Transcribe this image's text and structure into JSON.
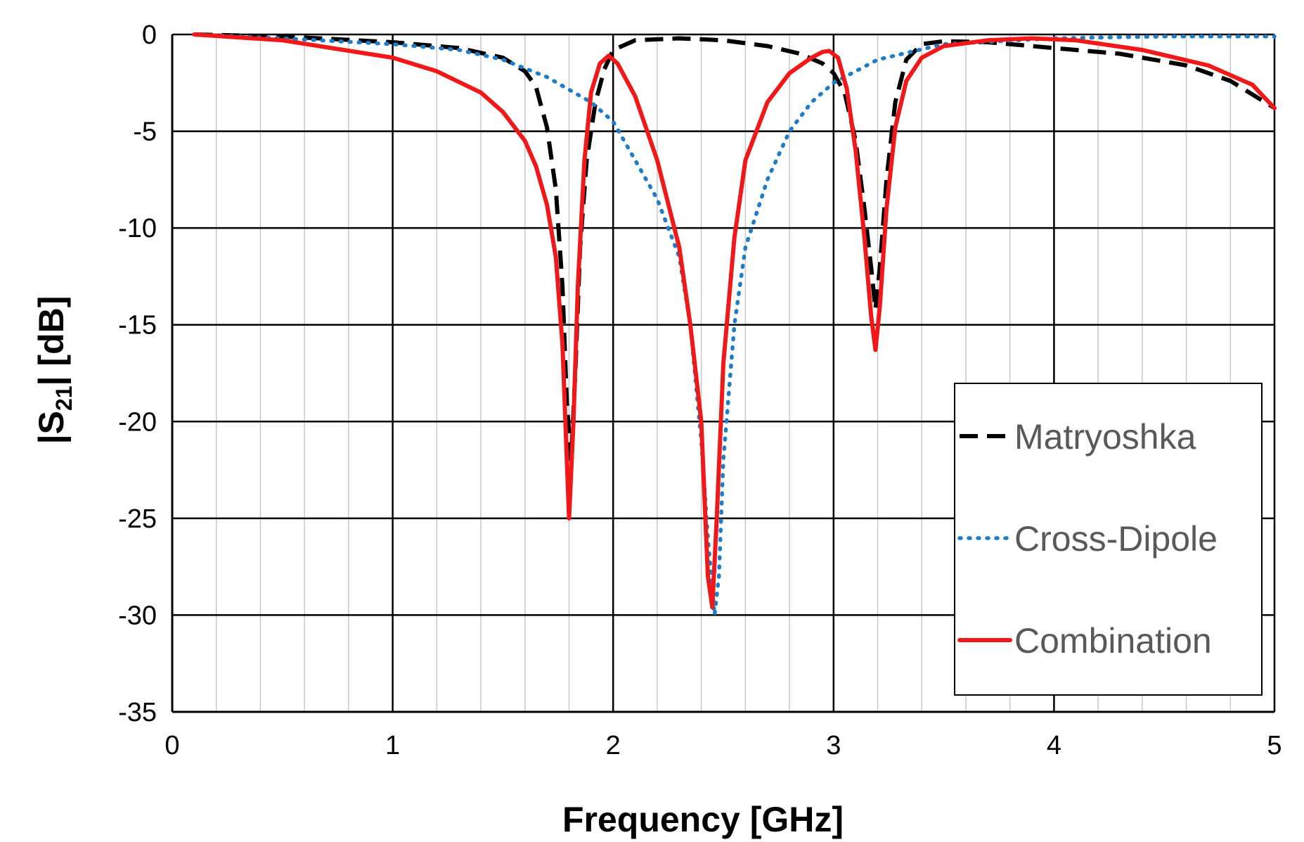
{
  "chart_data": {
    "type": "line",
    "title": "",
    "xlabel": "Frequency [GHz]",
    "ylabel": {
      "prefix": "|S",
      "sub": "21",
      "suffix": "| [dB]"
    },
    "xlim": [
      0,
      5
    ],
    "ylim": [
      -35,
      0
    ],
    "xticks": [
      0,
      1,
      2,
      3,
      4,
      5
    ],
    "yticks": [
      0,
      -5,
      -10,
      -15,
      -20,
      -25,
      -30,
      -35
    ],
    "x_minor_step": 0.2,
    "grid": true,
    "legend_position": "bottom-right",
    "series": [
      {
        "name": "Matryoshka",
        "color": "#000000",
        "style": "dashed",
        "x": [
          0.1,
          0.5,
          1.0,
          1.3,
          1.5,
          1.6,
          1.65,
          1.7,
          1.74,
          1.77,
          1.79,
          1.81,
          1.83,
          1.85,
          1.88,
          1.92,
          1.96,
          2.0,
          2.1,
          2.3,
          2.5,
          2.7,
          2.85,
          2.95,
          3.0,
          3.05,
          3.1,
          3.14,
          3.17,
          3.19,
          3.21,
          3.24,
          3.28,
          3.33,
          3.4,
          3.5,
          3.7,
          4.0,
          4.3,
          4.6,
          4.8,
          5.0
        ],
        "y": [
          0,
          -0.1,
          -0.4,
          -0.7,
          -1.2,
          -1.9,
          -2.7,
          -4.8,
          -8.0,
          -13.0,
          -19.0,
          -22.0,
          -17.0,
          -11.0,
          -6.5,
          -3.5,
          -1.8,
          -0.8,
          -0.3,
          -0.2,
          -0.3,
          -0.6,
          -1.0,
          -1.5,
          -2.0,
          -3.0,
          -5.5,
          -9.0,
          -12.0,
          -14.2,
          -12.0,
          -7.5,
          -3.5,
          -1.3,
          -0.5,
          -0.35,
          -0.4,
          -0.7,
          -1.0,
          -1.6,
          -2.4,
          -3.8
        ]
      },
      {
        "name": "Cross-Dipole",
        "color": "#1f7dc8",
        "style": "dotted",
        "x": [
          0.1,
          0.5,
          1.0,
          1.3,
          1.5,
          1.7,
          1.9,
          2.0,
          2.1,
          2.2,
          2.3,
          2.35,
          2.4,
          2.43,
          2.46,
          2.48,
          2.5,
          2.55,
          2.6,
          2.7,
          2.8,
          2.9,
          3.0,
          3.2,
          3.5,
          4.0,
          4.5,
          5.0
        ],
        "y": [
          0,
          -0.2,
          -0.5,
          -0.8,
          -1.3,
          -2.2,
          -3.5,
          -4.5,
          -6.5,
          -8.5,
          -11.5,
          -15.0,
          -21.0,
          -26.0,
          -30.0,
          -28.0,
          -22.0,
          -15.0,
          -11.0,
          -7.5,
          -5.0,
          -3.5,
          -2.5,
          -1.3,
          -0.5,
          -0.2,
          -0.1,
          -0.1
        ]
      },
      {
        "name": "Combination",
        "color": "#f01818",
        "style": "solid",
        "x": [
          0.1,
          0.5,
          1.0,
          1.2,
          1.4,
          1.5,
          1.6,
          1.65,
          1.7,
          1.74,
          1.77,
          1.8,
          1.82,
          1.84,
          1.87,
          1.9,
          1.94,
          1.98,
          2.02,
          2.1,
          2.2,
          2.3,
          2.35,
          2.4,
          2.43,
          2.45,
          2.47,
          2.5,
          2.55,
          2.6,
          2.7,
          2.8,
          2.9,
          2.95,
          2.98,
          3.02,
          3.06,
          3.1,
          3.14,
          3.17,
          3.19,
          3.21,
          3.24,
          3.28,
          3.33,
          3.4,
          3.5,
          3.7,
          3.9,
          4.1,
          4.4,
          4.7,
          4.9,
          5.0
        ],
        "y": [
          0,
          -0.3,
          -1.2,
          -1.9,
          -3.0,
          -4.0,
          -5.5,
          -6.8,
          -8.8,
          -11.5,
          -16.0,
          -25.0,
          -20.0,
          -13.0,
          -6.5,
          -3.0,
          -1.5,
          -1.1,
          -1.5,
          -3.2,
          -6.5,
          -11.0,
          -15.0,
          -20.0,
          -28.0,
          -29.6,
          -25.0,
          -17.0,
          -10.5,
          -6.5,
          -3.5,
          -2.0,
          -1.2,
          -0.9,
          -0.85,
          -1.2,
          -2.8,
          -6.0,
          -10.5,
          -14.5,
          -16.3,
          -14.0,
          -9.0,
          -4.8,
          -2.4,
          -1.2,
          -0.6,
          -0.3,
          -0.2,
          -0.3,
          -0.8,
          -1.6,
          -2.6,
          -3.8
        ]
      }
    ]
  }
}
